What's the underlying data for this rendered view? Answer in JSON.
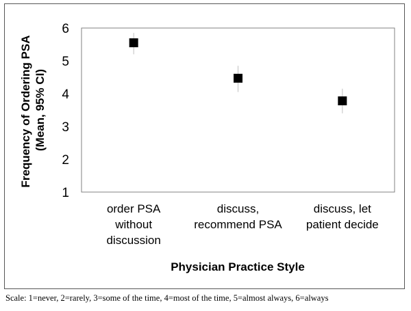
{
  "chart_data": {
    "type": "scatter",
    "categories": [
      [
        "order PSA",
        "without",
        "discussion"
      ],
      [
        "discuss,",
        "recommend PSA"
      ],
      [
        "discuss, let",
        "patient decide"
      ]
    ],
    "values": [
      5.55,
      4.47,
      3.78
    ],
    "ci_low": [
      5.2,
      4.05,
      3.4
    ],
    "ci_high": [
      5.85,
      4.85,
      4.15
    ],
    "xlabel": "Physician Practice Style",
    "ylabel": [
      "Frequency of Ordering PSA",
      "(Mean, 95% CI)"
    ],
    "ylim": [
      1,
      6
    ],
    "yticks": [
      1,
      2,
      3,
      4,
      5,
      6
    ],
    "grid": false,
    "legend": "none",
    "colors": {
      "marker": "#000000",
      "plot_border": "#808080",
      "error_bar": "#c0c0c0"
    }
  },
  "caption": "Scale: 1=never, 2=rarely, 3=some of the time, 4=most of the time, 5=almost always, 6=always"
}
